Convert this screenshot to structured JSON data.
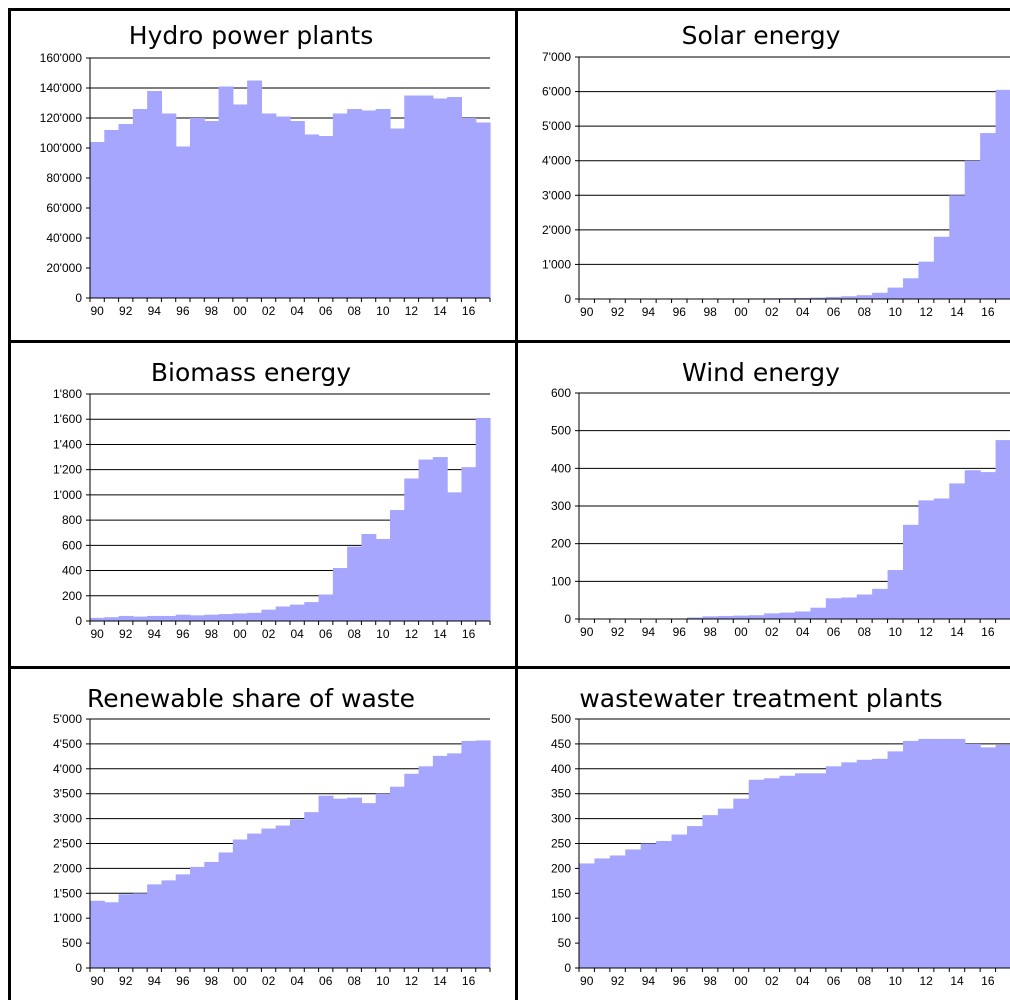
{
  "chart_data": [
    {
      "type": "area",
      "title": "Hydro power plants",
      "x_tick_labels": [
        "90",
        "92",
        "94",
        "96",
        "98",
        "00",
        "02",
        "04",
        "06",
        "08",
        "10",
        "12",
        "14",
        "16"
      ],
      "x": [
        1990,
        1991,
        1992,
        1993,
        1994,
        1995,
        1996,
        1997,
        1998,
        1999,
        2000,
        2001,
        2002,
        2003,
        2004,
        2005,
        2006,
        2007,
        2008,
        2009,
        2010,
        2011,
        2012,
        2013,
        2014,
        2015,
        2016,
        2017
      ],
      "values": [
        104000,
        112000,
        116000,
        126000,
        138000,
        123000,
        101000,
        120000,
        118000,
        141000,
        129000,
        145000,
        123000,
        121000,
        118000,
        109000,
        108000,
        123000,
        126000,
        125000,
        126000,
        113000,
        135000,
        135000,
        133000,
        134000,
        120000,
        117000
      ],
      "ylim": [
        0,
        160000
      ],
      "y_ticks": [
        0,
        20000,
        40000,
        60000,
        80000,
        100000,
        120000,
        140000,
        160000
      ],
      "y_tick_labels": [
        "0",
        "20'000",
        "40'000",
        "60'000",
        "80'000",
        "100'000",
        "120'000",
        "140'000",
        "160'000"
      ],
      "grid": true,
      "fill_color": "#a6a6ff"
    },
    {
      "type": "area",
      "title": "Solar energy",
      "x_tick_labels": [
        "90",
        "92",
        "94",
        "96",
        "98",
        "00",
        "02",
        "04",
        "06",
        "08",
        "10",
        "12",
        "14",
        "16"
      ],
      "x": [
        1990,
        1991,
        1992,
        1993,
        1994,
        1995,
        1996,
        1997,
        1998,
        1999,
        2000,
        2001,
        2002,
        2003,
        2004,
        2005,
        2006,
        2007,
        2008,
        2009,
        2010,
        2011,
        2012,
        2013,
        2014,
        2015,
        2016,
        2017
      ],
      "values": [
        1,
        1,
        2,
        3,
        4,
        6,
        8,
        10,
        12,
        14,
        15,
        17,
        20,
        25,
        30,
        40,
        60,
        80,
        110,
        180,
        330,
        600,
        1080,
        1800,
        3000,
        4000,
        4800,
        6050
      ],
      "ylim": [
        0,
        7000
      ],
      "y_ticks": [
        0,
        1000,
        2000,
        3000,
        4000,
        5000,
        6000,
        7000
      ],
      "y_tick_labels": [
        "0",
        "1'000",
        "2'000",
        "3'000",
        "4'000",
        "5'000",
        "6'000",
        "7'000"
      ],
      "grid": true,
      "fill_color": "#a6a6ff"
    },
    {
      "type": "area",
      "title": "Biomass energy",
      "x_tick_labels": [
        "90",
        "92",
        "94",
        "96",
        "98",
        "00",
        "02",
        "04",
        "06",
        "08",
        "10",
        "12",
        "14",
        "16"
      ],
      "x": [
        1990,
        1991,
        1992,
        1993,
        1994,
        1995,
        1996,
        1997,
        1998,
        1999,
        2000,
        2001,
        2002,
        2003,
        2004,
        2005,
        2006,
        2007,
        2008,
        2009,
        2010,
        2011,
        2012,
        2013,
        2014,
        2015,
        2016,
        2017
      ],
      "values": [
        25,
        30,
        40,
        35,
        40,
        40,
        50,
        45,
        50,
        55,
        60,
        65,
        90,
        115,
        130,
        150,
        210,
        420,
        590,
        690,
        650,
        880,
        1130,
        1280,
        1300,
        1020,
        1220,
        1610
      ],
      "ylim": [
        0,
        1800
      ],
      "y_ticks": [
        0,
        200,
        400,
        600,
        800,
        1000,
        1200,
        1400,
        1600,
        1800
      ],
      "y_tick_labels": [
        "0",
        "200",
        "400",
        "600",
        "800",
        "1'000",
        "1'200",
        "1'400",
        "1'600",
        "1'800"
      ],
      "grid": true,
      "fill_color": "#a6a6ff"
    },
    {
      "type": "area",
      "title": "Wind energy",
      "x_tick_labels": [
        "90",
        "92",
        "94",
        "96",
        "98",
        "00",
        "02",
        "04",
        "06",
        "08",
        "10",
        "12",
        "14",
        "16"
      ],
      "x": [
        1990,
        1991,
        1992,
        1993,
        1994,
        1995,
        1996,
        1997,
        1998,
        1999,
        2000,
        2001,
        2002,
        2003,
        2004,
        2005,
        2006,
        2007,
        2008,
        2009,
        2010,
        2011,
        2012,
        2013,
        2014,
        2015,
        2016,
        2017
      ],
      "values": [
        0,
        0,
        0,
        0,
        0,
        0,
        1,
        4,
        7,
        8,
        9,
        10,
        15,
        17,
        20,
        30,
        55,
        57,
        65,
        80,
        130,
        250,
        315,
        320,
        360,
        395,
        390,
        475
      ],
      "ylim": [
        0,
        600
      ],
      "y_ticks": [
        0,
        100,
        200,
        300,
        400,
        500,
        600
      ],
      "y_tick_labels": [
        "0",
        "100",
        "200",
        "300",
        "400",
        "500",
        "600"
      ],
      "grid": true,
      "fill_color": "#a6a6ff"
    },
    {
      "type": "area",
      "title": "Renewable share of waste",
      "x_tick_labels": [
        "90",
        "92",
        "94",
        "96",
        "98",
        "00",
        "02",
        "04",
        "06",
        "08",
        "10",
        "12",
        "14",
        "16"
      ],
      "x": [
        1990,
        1991,
        1992,
        1993,
        1994,
        1995,
        1996,
        1997,
        1998,
        1999,
        2000,
        2001,
        2002,
        2003,
        2004,
        2005,
        2006,
        2007,
        2008,
        2009,
        2010,
        2011,
        2012,
        2013,
        2014,
        2015,
        2016,
        2017
      ],
      "values": [
        1350,
        1320,
        1480,
        1500,
        1680,
        1760,
        1880,
        2030,
        2130,
        2320,
        2580,
        2700,
        2800,
        2860,
        2980,
        3130,
        3460,
        3400,
        3420,
        3310,
        3500,
        3640,
        3900,
        4050,
        4260,
        4310,
        4560,
        4570
      ],
      "ylim": [
        0,
        5000
      ],
      "y_ticks": [
        0,
        500,
        1000,
        1500,
        2000,
        2500,
        3000,
        3500,
        4000,
        4500,
        5000
      ],
      "y_tick_labels": [
        "0",
        "500",
        "1'000",
        "1'500",
        "2'000",
        "2'500",
        "3'000",
        "3'500",
        "4'000",
        "4'500",
        "5'000"
      ],
      "grid": true,
      "fill_color": "#a6a6ff"
    },
    {
      "type": "area",
      "title": "wastewater treatment plants",
      "x_tick_labels": [
        "90",
        "92",
        "94",
        "96",
        "98",
        "00",
        "02",
        "04",
        "06",
        "08",
        "10",
        "12",
        "14",
        "16"
      ],
      "x": [
        1990,
        1991,
        1992,
        1993,
        1994,
        1995,
        1996,
        1997,
        1998,
        1999,
        2000,
        2001,
        2002,
        2003,
        2004,
        2005,
        2006,
        2007,
        2008,
        2009,
        2010,
        2011,
        2012,
        2013,
        2014,
        2015,
        2016,
        2017
      ],
      "values": [
        210,
        220,
        226,
        238,
        250,
        255,
        268,
        285,
        307,
        320,
        340,
        378,
        381,
        386,
        391,
        391,
        405,
        413,
        418,
        420,
        435,
        456,
        460,
        460,
        460,
        450,
        443,
        448
      ],
      "ylim": [
        0,
        500
      ],
      "y_ticks": [
        0,
        50,
        100,
        150,
        200,
        250,
        300,
        350,
        400,
        450,
        500
      ],
      "y_tick_labels": [
        "0",
        "50",
        "100",
        "150",
        "200",
        "250",
        "300",
        "350",
        "400",
        "450",
        "500"
      ],
      "grid": true,
      "fill_color": "#a6a6ff"
    }
  ]
}
